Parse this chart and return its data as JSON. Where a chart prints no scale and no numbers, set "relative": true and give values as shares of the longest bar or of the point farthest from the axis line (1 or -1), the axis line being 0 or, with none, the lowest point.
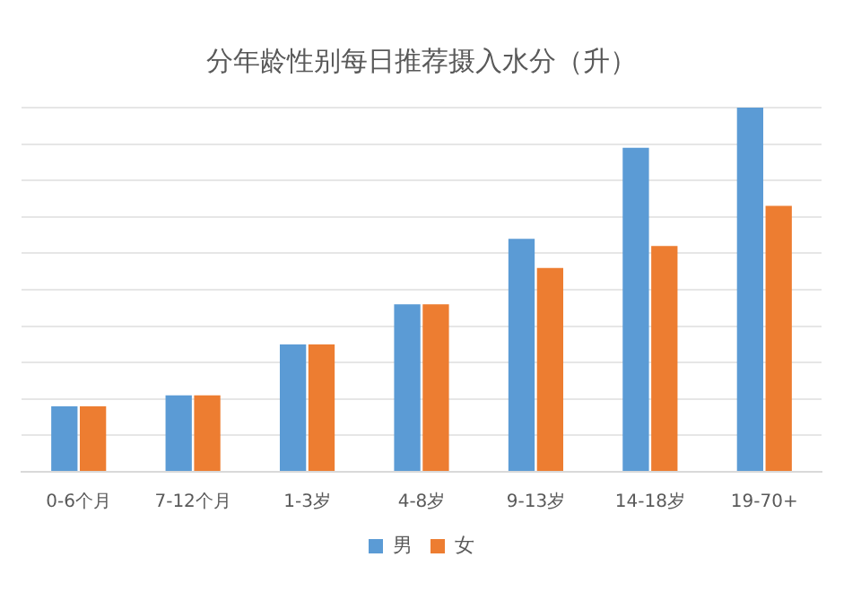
{
  "chart_data": {
    "type": "bar",
    "title": "分年龄性别每日推荐摄入水分（升）",
    "categories": [
      "0-6个月",
      "7-12个月",
      "1-3岁",
      "4-8岁",
      "9-13岁",
      "14-18岁",
      "19-70+"
    ],
    "relative": true,
    "series": [
      {
        "name": "男",
        "color": "#5b9bd5",
        "values": [
          0.18,
          0.21,
          0.35,
          0.46,
          0.64,
          0.89,
          1
        ]
      },
      {
        "name": "女",
        "color": "#ed7d31",
        "values": [
          0.18,
          0.21,
          0.35,
          0.46,
          0.56,
          0.62,
          0.73
        ]
      }
    ],
    "grid": "y",
    "legend": "bottom"
  }
}
